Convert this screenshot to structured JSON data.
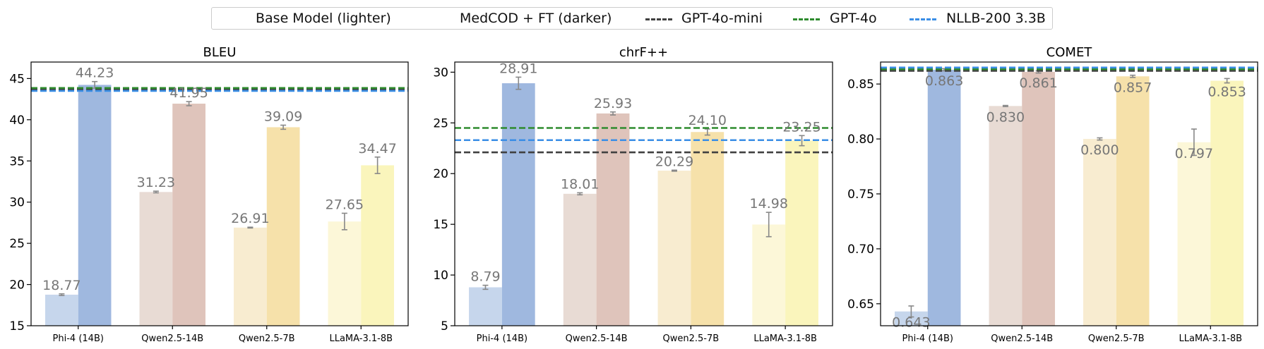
{
  "legend": {
    "base_label": "Base Model (lighter)",
    "ft_label": "MedCOD + FT (darker)",
    "gpt4o_mini_label": "GPT-4o-mini",
    "gpt4o_label": "GPT-4o",
    "nllb_label": "NLLB-200 3.3B",
    "colors": {
      "gpt4o_mini": "#404040",
      "gpt4o": "#2e8b2e",
      "nllb": "#3a8ee6"
    }
  },
  "chart_data": [
    {
      "type": "bar",
      "title": "BLEU",
      "categories": [
        "Phi-4 (14B)",
        "Qwen2.5-14B",
        "Qwen2.5-7B",
        "LLaMA-3.1-8B"
      ],
      "series": [
        {
          "name": "Base Model (lighter)",
          "values": [
            18.77,
            31.23,
            26.91,
            27.65
          ],
          "errors": [
            0.1,
            0.1,
            0.05,
            1.0
          ],
          "labels": [
            "18.77",
            "31.23",
            "26.91",
            "27.65"
          ]
        },
        {
          "name": "MedCOD + FT (darker)",
          "values": [
            44.23,
            41.95,
            39.09,
            34.47
          ],
          "errors": [
            0.4,
            0.25,
            0.25,
            1.0
          ],
          "labels": [
            "44.23",
            "41.95",
            "39.09",
            "34.47"
          ]
        }
      ],
      "reference_lines": [
        {
          "name": "GPT-4o-mini",
          "value": 43.7
        },
        {
          "name": "GPT-4o",
          "value": 43.85
        },
        {
          "name": "NLLB-200 3.3B",
          "value": 43.5
        }
      ],
      "ylim": [
        15,
        47
      ],
      "yticks": [
        15,
        20,
        25,
        30,
        35,
        40,
        45
      ],
      "xlabel": "",
      "ylabel": ""
    },
    {
      "type": "bar",
      "title": "chrF++",
      "categories": [
        "Phi-4 (14B)",
        "Qwen2.5-14B",
        "Qwen2.5-7B",
        "LLaMA-3.1-8B"
      ],
      "series": [
        {
          "name": "Base Model (lighter)",
          "values": [
            8.79,
            18.01,
            20.29,
            14.98
          ],
          "errors": [
            0.2,
            0.1,
            0.05,
            1.2
          ],
          "labels": [
            "8.79",
            "18.01",
            "20.29",
            "14.98"
          ]
        },
        {
          "name": "MedCOD + FT (darker)",
          "values": [
            28.91,
            25.93,
            24.1,
            23.25
          ],
          "errors": [
            0.6,
            0.15,
            0.3,
            0.5
          ],
          "labels": [
            "28.91",
            "25.93",
            "24.10",
            "23.25"
          ]
        }
      ],
      "reference_lines": [
        {
          "name": "GPT-4o-mini",
          "value": 22.1
        },
        {
          "name": "GPT-4o",
          "value": 24.5
        },
        {
          "name": "NLLB-200 3.3B",
          "value": 23.3
        }
      ],
      "ylim": [
        5,
        31
      ],
      "yticks": [
        5,
        10,
        15,
        20,
        25,
        30
      ],
      "xlabel": "",
      "ylabel": ""
    },
    {
      "type": "bar",
      "title": "COMET",
      "categories": [
        "Phi-4 (14B)",
        "Qwen2.5-14B",
        "Qwen2.5-7B",
        "LLaMA-3.1-8B"
      ],
      "series": [
        {
          "name": "Base Model (lighter)",
          "values": [
            0.643,
            0.83,
            0.8,
            0.797
          ],
          "errors": [
            0.005,
            0.0005,
            0.001,
            0.012
          ],
          "labels": [
            "0.643",
            "0.830",
            "0.800",
            "0.797"
          ]
        },
        {
          "name": "MedCOD + FT (darker)",
          "values": [
            0.863,
            0.861,
            0.857,
            0.853
          ],
          "errors": [
            0.001,
            0.001,
            0.001,
            0.002
          ],
          "labels": [
            "0.863",
            "0.861",
            "0.857",
            "0.853"
          ]
        }
      ],
      "reference_lines": [
        {
          "name": "GPT-4o-mini",
          "value": 0.862
        },
        {
          "name": "GPT-4o",
          "value": 0.8635
        },
        {
          "name": "NLLB-200 3.3B",
          "value": 0.865
        }
      ],
      "ylim": [
        0.63,
        0.87
      ],
      "yticks": [
        0.65,
        0.7,
        0.75,
        0.8,
        0.85
      ],
      "tick_format": 2,
      "xlabel": "",
      "ylabel": ""
    }
  ],
  "bar_colors": {
    "base": [
      "#c6d6ec",
      "#e8dbd4",
      "#f8ecd0",
      "#fcf7d8"
    ],
    "ft": [
      "#9fb8df",
      "#dfc4bb",
      "#f6e1aa",
      "#faf5bc"
    ]
  }
}
